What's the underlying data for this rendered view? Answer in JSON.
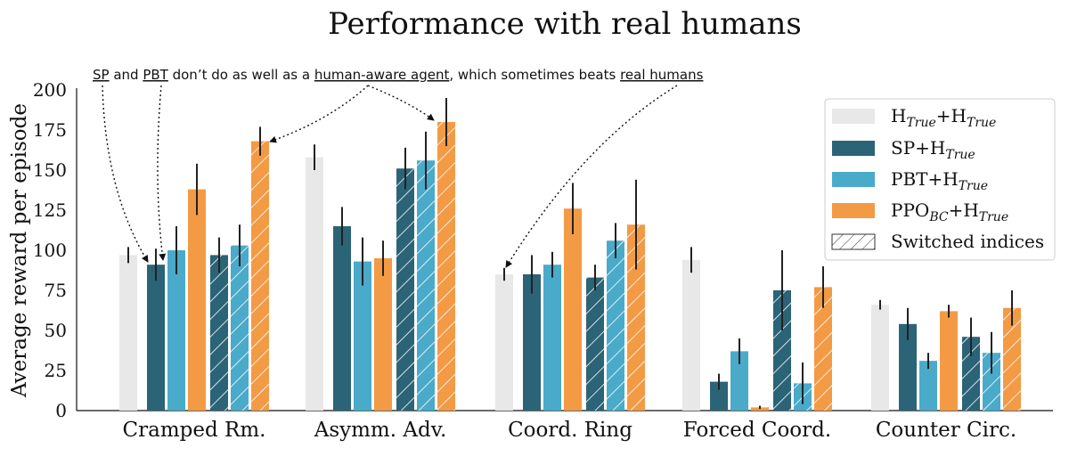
{
  "chart_data": {
    "type": "bar",
    "title": "Performance with real humans",
    "ylabel": "Average reward per episode",
    "xlabel": "",
    "ylim": [
      0,
      200
    ],
    "yticks": [
      0,
      25,
      50,
      75,
      100,
      125,
      150,
      175,
      200
    ],
    "categories": [
      "Cramped Rm.",
      "Asymm. Adv.",
      "Coord. Ring",
      "Forced Coord.",
      "Counter Circ."
    ],
    "series": [
      {
        "name": "H_True+H_True",
        "color": "#e8e8e8",
        "hatched": false,
        "values": [
          97,
          158,
          85,
          94,
          66
        ],
        "errors": [
          5,
          8,
          4,
          8,
          3
        ]
      },
      {
        "name": "SP+H_True",
        "color": "#2b6377",
        "hatched": false,
        "values": [
          91,
          115,
          85,
          18,
          54
        ],
        "errors": [
          10,
          12,
          12,
          5,
          10
        ]
      },
      {
        "name": "PBT+H_True",
        "color": "#4aaac9",
        "hatched": false,
        "values": [
          100,
          93,
          91,
          37,
          31
        ],
        "errors": [
          15,
          15,
          8,
          8,
          5
        ]
      },
      {
        "name": "PPO_BC+H_True",
        "color": "#f39a45",
        "hatched": false,
        "values": [
          138,
          95,
          126,
          2,
          62
        ],
        "errors": [
          16,
          11,
          16,
          1,
          4
        ]
      },
      {
        "name": "SP+H_True (switched)",
        "color": "#2b6377",
        "hatched": true,
        "values": [
          97,
          151,
          83,
          75,
          46
        ],
        "errors": [
          11,
          13,
          8,
          25,
          12
        ]
      },
      {
        "name": "PBT+H_True (switched)",
        "color": "#4aaac9",
        "hatched": true,
        "values": [
          103,
          156,
          106,
          17,
          36
        ],
        "errors": [
          13,
          18,
          11,
          13,
          13
        ]
      },
      {
        "name": "PPO_BC+H_True (switched)",
        "color": "#f39a45",
        "hatched": true,
        "values": [
          168,
          180,
          116,
          77,
          64
        ],
        "errors": [
          9,
          15,
          28,
          13,
          11
        ]
      }
    ],
    "legend": {
      "placement": "top-right",
      "entries": [
        {
          "base": "H",
          "sub": "True",
          "mid": "+H",
          "sub2": "True",
          "color": "#e8e8e8",
          "hatched": false
        },
        {
          "base": "SP+H",
          "sub": "True",
          "mid": "",
          "sub2": "",
          "color": "#2b6377",
          "hatched": false
        },
        {
          "base": "PBT+H",
          "sub": "True",
          "mid": "",
          "sub2": "",
          "color": "#4aaac9",
          "hatched": false
        },
        {
          "base": "PPO",
          "sub": "BC",
          "mid": "+H",
          "sub2": "True",
          "color": "#f39a45",
          "hatched": false
        },
        {
          "base": "Switched indices",
          "sub": "",
          "mid": "",
          "sub2": "",
          "color": "#ffffff",
          "hatched": true
        }
      ]
    },
    "annotation": {
      "parts": [
        {
          "text": "SP",
          "underline": true
        },
        {
          "text": " and ",
          "underline": false
        },
        {
          "text": "PBT",
          "underline": true
        },
        {
          "text": " don’t do as well as a ",
          "underline": false
        },
        {
          "text": "human-aware agent",
          "underline": true
        },
        {
          "text": ", which sometimes beats ",
          "underline": false
        },
        {
          "text": "real humans",
          "underline": true
        }
      ]
    }
  }
}
